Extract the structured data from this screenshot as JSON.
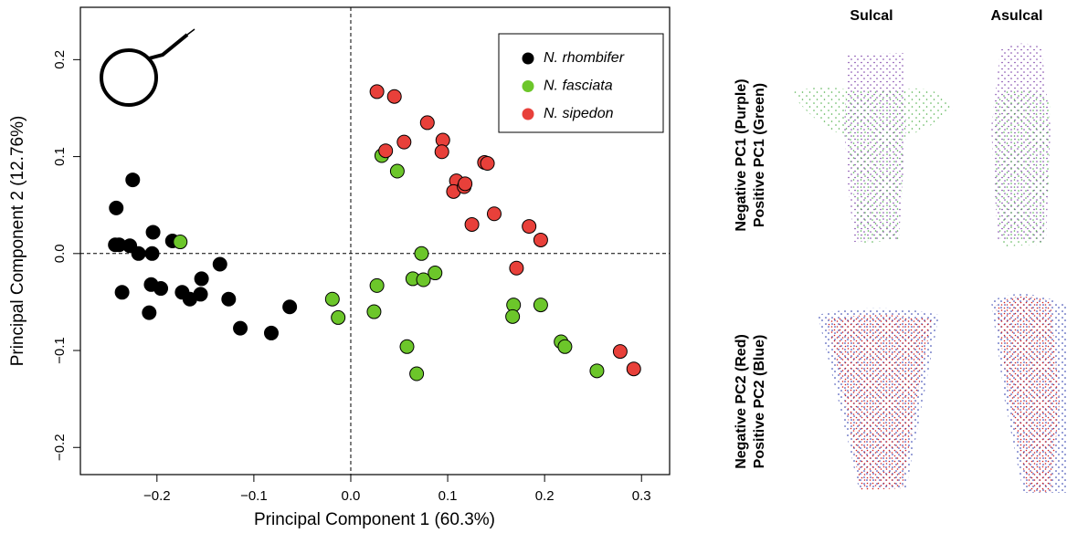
{
  "chart_data": {
    "type": "scatter",
    "xlabel": "Principal Component 1 (60.3%)",
    "ylabel": "Principal Component 2 (12.76%)",
    "xlim": [
      -0.279,
      0.329
    ],
    "ylim": [
      -0.228,
      0.254
    ],
    "xticks": [
      {
        "value": -0.2,
        "label": "−0.2"
      },
      {
        "value": -0.1,
        "label": "−0.1"
      },
      {
        "value": 0,
        "label": "0.0"
      },
      0.1,
      0.2,
      0.3
    ],
    "yticks": [
      {
        "value": -0.2,
        "label": "−0.2"
      },
      {
        "value": -0.1,
        "label": "−0.1"
      },
      {
        "value": 0,
        "label": "0.0"
      },
      0.1,
      0.2
    ],
    "vline": 0,
    "hline": 0,
    "legend": "top-right",
    "series": [
      {
        "name": "N. rhombifer",
        "color": "#000000",
        "x": [
          -0.242,
          -0.225,
          -0.243,
          -0.239,
          -0.228,
          -0.219,
          -0.205,
          -0.204,
          -0.184,
          -0.236,
          -0.206,
          -0.208,
          -0.196,
          -0.174,
          -0.166,
          -0.155,
          -0.154,
          -0.135,
          -0.126,
          -0.114,
          -0.082,
          -0.063
        ],
        "values": [
          0.047,
          0.076,
          0.009,
          0.009,
          0.008,
          0.0,
          0.0,
          0.022,
          0.013,
          -0.04,
          -0.032,
          -0.061,
          -0.036,
          -0.04,
          -0.047,
          -0.042,
          -0.026,
          -0.011,
          -0.047,
          -0.077,
          -0.082,
          -0.055
        ]
      },
      {
        "name": "N. fasciata",
        "color": "#6cc62a",
        "x": [
          -0.176,
          -0.019,
          -0.013,
          0.024,
          0.027,
          0.032,
          0.048,
          0.073,
          0.064,
          0.075,
          0.087,
          0.058,
          0.068,
          0.168,
          0.167,
          0.196,
          0.217,
          0.221,
          0.254
        ],
        "values": [
          0.012,
          -0.047,
          -0.066,
          -0.06,
          -0.033,
          0.101,
          0.085,
          0.0,
          -0.026,
          -0.027,
          -0.02,
          -0.096,
          -0.124,
          -0.053,
          -0.065,
          -0.053,
          -0.091,
          -0.096,
          -0.121
        ]
      },
      {
        "name": "N. sipedon",
        "color": "#e8403a",
        "x": [
          0.027,
          0.045,
          0.036,
          0.055,
          0.079,
          0.095,
          0.094,
          0.109,
          0.106,
          0.117,
          0.118,
          0.138,
          0.141,
          0.125,
          0.148,
          0.184,
          0.196,
          0.171,
          0.278,
          0.292
        ],
        "values": [
          0.167,
          0.162,
          0.106,
          0.115,
          0.135,
          0.117,
          0.105,
          0.075,
          0.064,
          0.069,
          0.072,
          0.094,
          0.093,
          0.03,
          0.041,
          0.028,
          0.014,
          -0.015,
          -0.101,
          -0.119
        ]
      }
    ]
  },
  "panels": {
    "columns": [
      "Sulcal",
      "Asulcal"
    ],
    "rows": [
      [
        "Negative PC1 (Purple)",
        "Positive PC1 (Green)"
      ],
      [
        "Negative PC2 (Red)",
        "Positive PC2 (Blue)"
      ]
    ]
  }
}
